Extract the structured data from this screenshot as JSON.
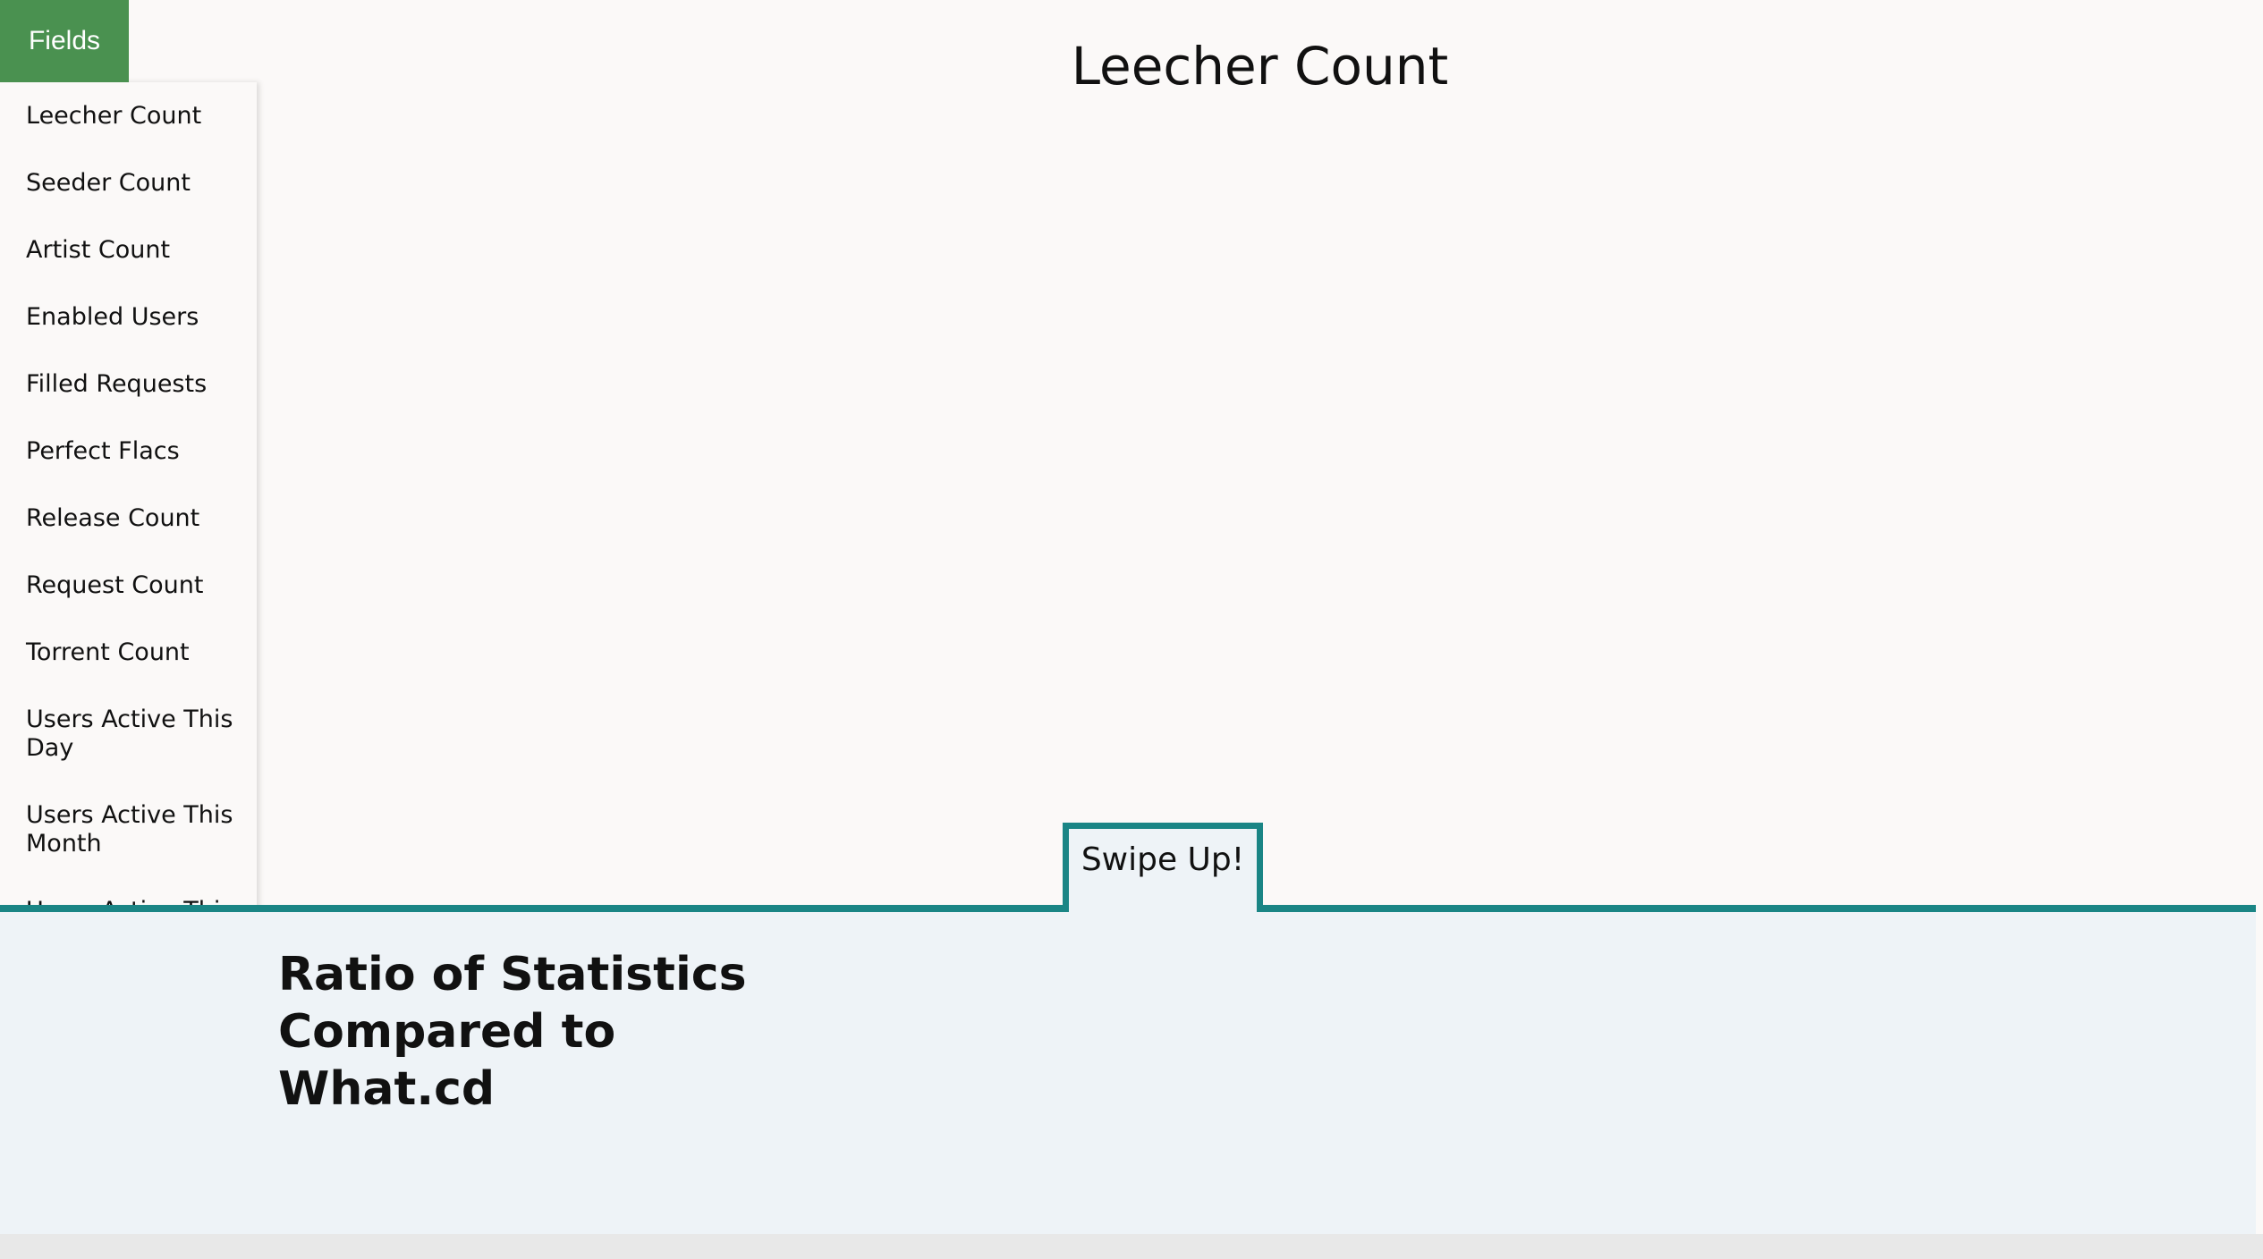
{
  "header": {
    "button": "Fields",
    "title": "Leecher Count"
  },
  "sidebar": {
    "items": [
      "Leecher Count",
      "Seeder Count",
      "Artist Count",
      "Enabled Users",
      "Filled Requests",
      "Perfect Flacs",
      "Release Count",
      "Request Count",
      "Torrent Count",
      "Users Active This Day",
      "Users Active This Month",
      "Users Active This Week"
    ]
  },
  "panel": {
    "tab": "Swipe Up!",
    "heading": "Ratio of Statistics Compared to What.cd"
  }
}
